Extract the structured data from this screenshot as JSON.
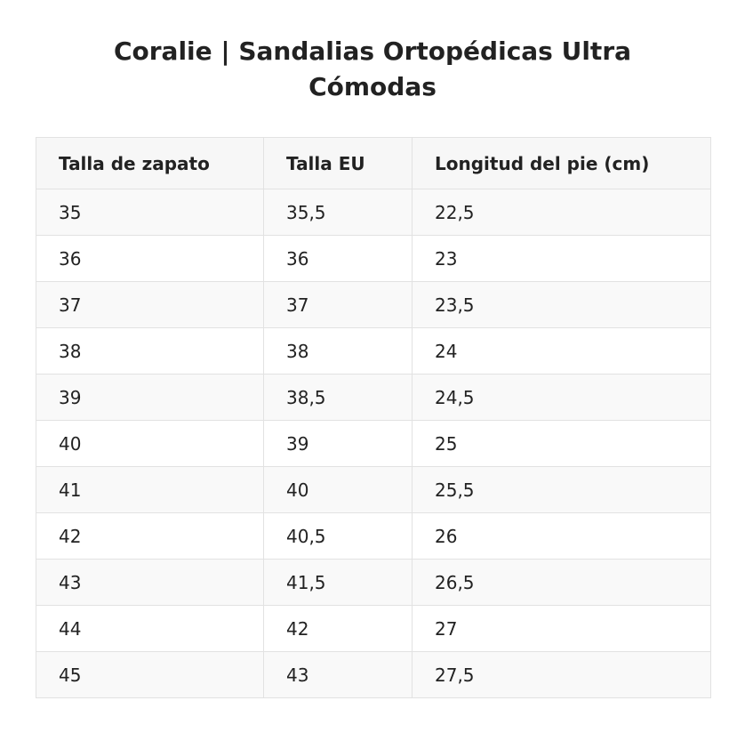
{
  "page": {
    "title": "Coralie | Sandalias Ortopédicas Ultra Cómodas"
  },
  "table": {
    "headers": [
      "Talla de zapato",
      "Talla EU",
      "Longitud del pie (cm)"
    ],
    "rows": [
      [
        "35",
        "35,5",
        "22,5"
      ],
      [
        "36",
        "36",
        "23"
      ],
      [
        "37",
        "37",
        "23,5"
      ],
      [
        "38",
        "38",
        "24"
      ],
      [
        "39",
        "38,5",
        "24,5"
      ],
      [
        "40",
        "39",
        "25"
      ],
      [
        "41",
        "40",
        "25,5"
      ],
      [
        "42",
        "40,5",
        "26"
      ],
      [
        "43",
        "41,5",
        "26,5"
      ],
      [
        "44",
        "42",
        "27"
      ],
      [
        "45",
        "43",
        "27,5"
      ]
    ]
  }
}
